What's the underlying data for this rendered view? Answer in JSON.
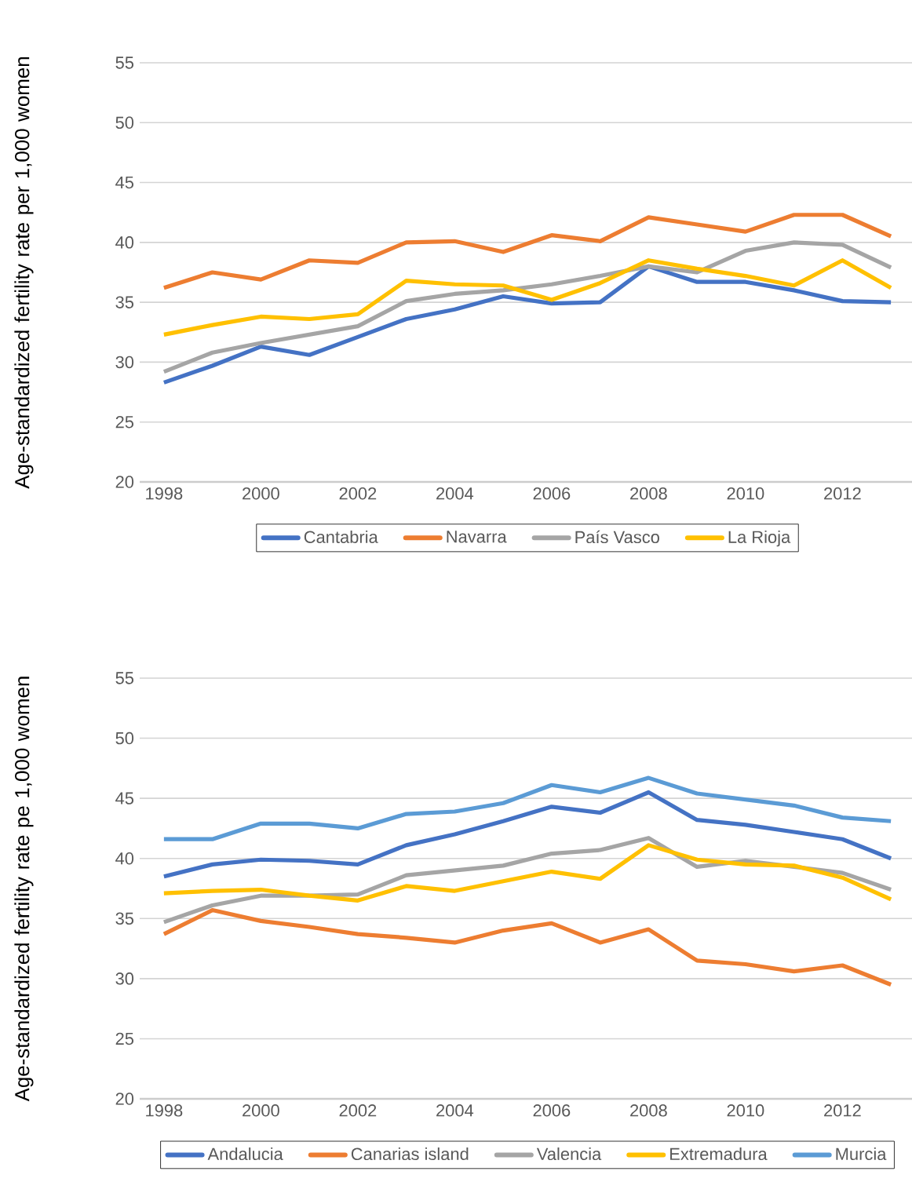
{
  "chart_data": [
    {
      "type": "line",
      "ylabel": "Age-standardized fertility rate per 1,000 women",
      "x": [
        1998,
        1999,
        2000,
        2001,
        2002,
        2003,
        2004,
        2005,
        2006,
        2007,
        2008,
        2009,
        2010,
        2011,
        2012,
        2013
      ],
      "xlim": [
        1997.5,
        2013.5
      ],
      "xticks": [
        1998,
        2000,
        2002,
        2004,
        2006,
        2008,
        2010,
        2012
      ],
      "ylim": [
        20,
        55
      ],
      "yticks": [
        20,
        25,
        30,
        35,
        40,
        45,
        50,
        55
      ],
      "grid": "y",
      "legend": "bottom",
      "series": [
        {
          "name": "Cantabria",
          "color": "#4472c4",
          "values": [
            28.3,
            29.7,
            31.3,
            30.6,
            32.1,
            33.6,
            34.4,
            35.5,
            34.9,
            35.0,
            38.0,
            36.7,
            36.7,
            36.0,
            35.1,
            35.0
          ]
        },
        {
          "name": "Navarra",
          "color": "#ed7d31",
          "values": [
            36.2,
            37.5,
            36.9,
            38.5,
            38.3,
            40.0,
            40.1,
            39.2,
            40.6,
            40.1,
            42.1,
            41.5,
            40.9,
            42.3,
            42.3,
            40.5
          ]
        },
        {
          "name": "País Vasco",
          "color": "#a5a5a5",
          "values": [
            29.2,
            30.8,
            31.6,
            32.3,
            33.0,
            35.1,
            35.7,
            36.0,
            36.5,
            37.2,
            38.0,
            37.5,
            39.3,
            40.0,
            39.8,
            37.9
          ]
        },
        {
          "name": "La Rioja",
          "color": "#ffc000",
          "values": [
            32.3,
            33.1,
            33.8,
            33.6,
            34.0,
            36.8,
            36.5,
            36.4,
            35.2,
            36.6,
            38.5,
            37.8,
            37.2,
            36.4,
            38.5,
            36.2
          ]
        }
      ]
    },
    {
      "type": "line",
      "ylabel": "Age-standardized fertility rate pe 1,000 women",
      "x": [
        1998,
        1999,
        2000,
        2001,
        2002,
        2003,
        2004,
        2005,
        2006,
        2007,
        2008,
        2009,
        2010,
        2011,
        2012,
        2013
      ],
      "xlim": [
        1997.5,
        2013.5
      ],
      "xticks": [
        1998,
        2000,
        2002,
        2004,
        2006,
        2008,
        2010,
        2012
      ],
      "ylim": [
        20,
        55
      ],
      "yticks": [
        20,
        25,
        30,
        35,
        40,
        45,
        50,
        55
      ],
      "grid": "y",
      "legend": "bottom",
      "series": [
        {
          "name": "Andalucia",
          "color": "#4472c4",
          "values": [
            38.5,
            39.5,
            39.9,
            39.8,
            39.5,
            41.1,
            42.0,
            43.1,
            44.3,
            43.8,
            45.5,
            43.2,
            42.8,
            42.2,
            41.6,
            40.0
          ]
        },
        {
          "name": "Canarias island",
          "color": "#ed7d31",
          "values": [
            33.7,
            35.7,
            34.8,
            34.3,
            33.7,
            33.4,
            33.0,
            34.0,
            34.6,
            33.0,
            34.1,
            31.5,
            31.2,
            30.6,
            31.1,
            29.5
          ]
        },
        {
          "name": "Valencia",
          "color": "#a5a5a5",
          "values": [
            34.7,
            36.1,
            36.9,
            36.9,
            37.0,
            38.6,
            39.0,
            39.4,
            40.4,
            40.7,
            41.7,
            39.3,
            39.8,
            39.3,
            38.8,
            37.4
          ]
        },
        {
          "name": "Extremadura",
          "color": "#ffc000",
          "values": [
            37.1,
            37.3,
            37.4,
            36.9,
            36.5,
            37.7,
            37.3,
            38.1,
            38.9,
            38.3,
            41.1,
            39.9,
            39.5,
            39.4,
            38.4,
            36.6
          ]
        },
        {
          "name": "Murcia",
          "color": "#5b9bd5",
          "values": [
            41.6,
            41.6,
            42.9,
            42.9,
            42.5,
            43.7,
            43.9,
            44.6,
            46.1,
            45.5,
            46.7,
            45.4,
            44.9,
            44.4,
            43.4,
            43.1
          ]
        }
      ]
    }
  ]
}
